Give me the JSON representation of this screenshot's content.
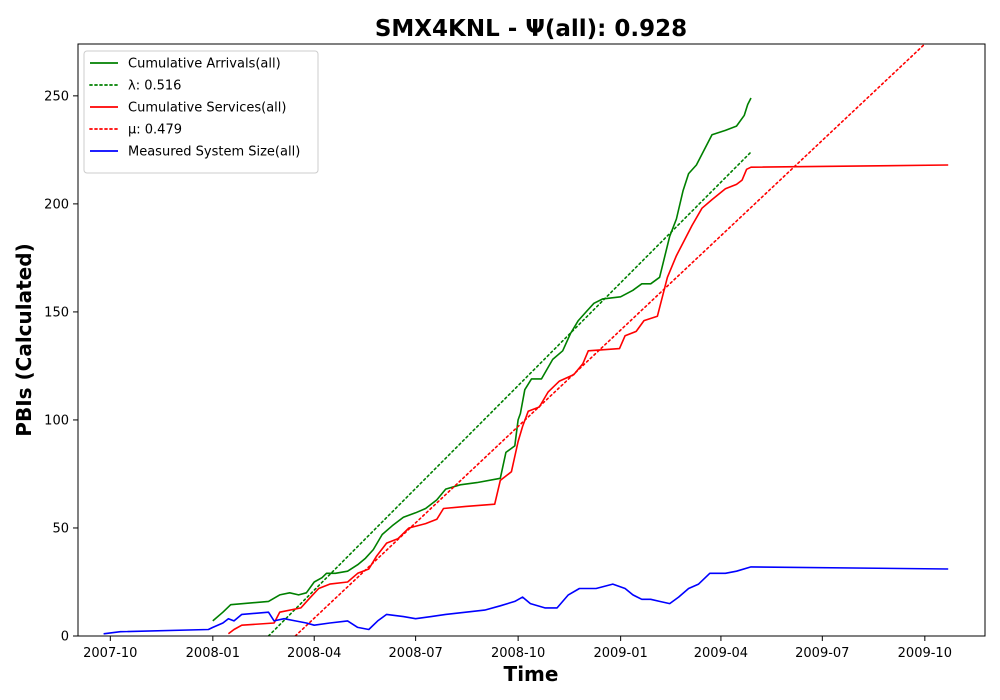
{
  "chart_data": {
    "type": "line",
    "title": "SMX4KNL -  Ψ(all): 0.928",
    "xlabel": "Time",
    "ylabel": "PBIs (Calculated)",
    "x_axis": {
      "type": "date",
      "range": [
        "2007-09-02",
        "2009-11-24"
      ],
      "ticks": [
        "2007-10",
        "2008-01",
        "2008-04",
        "2008-07",
        "2008-10",
        "2009-01",
        "2009-04",
        "2009-07",
        "2009-10"
      ]
    },
    "y_axis": {
      "range": [
        0,
        274
      ],
      "ticks": [
        0,
        50,
        100,
        150,
        200,
        250
      ]
    },
    "grid": false,
    "legend_location": "upper left",
    "series": [
      {
        "name": "Cumulative Arrivals(all)",
        "color": "#008000",
        "style": "solid",
        "points": [
          [
            "2008-01-01",
            7
          ],
          [
            "2008-01-10",
            11
          ],
          [
            "2008-01-17",
            14.5
          ],
          [
            "2008-02-20",
            16
          ],
          [
            "2008-03-01",
            19
          ],
          [
            "2008-03-10",
            20
          ],
          [
            "2008-03-18",
            19
          ],
          [
            "2008-03-25",
            20
          ],
          [
            "2008-04-01",
            25
          ],
          [
            "2008-04-08",
            27
          ],
          [
            "2008-04-12",
            29
          ],
          [
            "2008-04-20",
            29
          ],
          [
            "2008-05-01",
            30
          ],
          [
            "2008-05-10",
            33
          ],
          [
            "2008-05-17",
            36
          ],
          [
            "2008-05-24",
            40
          ],
          [
            "2008-06-01",
            47
          ],
          [
            "2008-06-10",
            51
          ],
          [
            "2008-06-20",
            55
          ],
          [
            "2008-07-01",
            57
          ],
          [
            "2008-07-10",
            59
          ],
          [
            "2008-07-20",
            63
          ],
          [
            "2008-07-28",
            68
          ],
          [
            "2008-08-10",
            70
          ],
          [
            "2008-08-25",
            71
          ],
          [
            "2008-09-15",
            73
          ],
          [
            "2008-09-20",
            85
          ],
          [
            "2008-09-28",
            88
          ],
          [
            "2008-10-01",
            100
          ],
          [
            "2008-10-03",
            103
          ],
          [
            "2008-10-07",
            114
          ],
          [
            "2008-10-13",
            119
          ],
          [
            "2008-10-22",
            119
          ],
          [
            "2008-11-01",
            128
          ],
          [
            "2008-11-10",
            132
          ],
          [
            "2008-11-17",
            140
          ],
          [
            "2008-11-24",
            146
          ],
          [
            "2008-12-01",
            150
          ],
          [
            "2008-12-08",
            154
          ],
          [
            "2008-12-16",
            156
          ],
          [
            "2009-01-01",
            157
          ],
          [
            "2009-01-12",
            160
          ],
          [
            "2009-01-20",
            163
          ],
          [
            "2009-01-28",
            163
          ],
          [
            "2009-02-05",
            166
          ],
          [
            "2009-02-14",
            185
          ],
          [
            "2009-02-20",
            193
          ],
          [
            "2009-02-26",
            206
          ],
          [
            "2009-03-03",
            214
          ],
          [
            "2009-03-10",
            218
          ],
          [
            "2009-03-17",
            225
          ],
          [
            "2009-03-24",
            232
          ],
          [
            "2009-04-05",
            234
          ],
          [
            "2009-04-15",
            236
          ],
          [
            "2009-04-22",
            241
          ],
          [
            "2009-04-25",
            246
          ],
          [
            "2009-04-28",
            249
          ]
        ]
      },
      {
        "name": "λ: 0.516",
        "color": "#008000",
        "style": "dotted",
        "points": [
          [
            "2008-02-20",
            0
          ],
          [
            "2009-04-28",
            224
          ]
        ]
      },
      {
        "name": "Cumulative Services(all)",
        "color": "#ff0000",
        "style": "solid",
        "points": [
          [
            "2008-01-15",
            1
          ],
          [
            "2008-01-20",
            3
          ],
          [
            "2008-01-27",
            5
          ],
          [
            "2008-02-25",
            6
          ],
          [
            "2008-03-01",
            11
          ],
          [
            "2008-03-20",
            13
          ],
          [
            "2008-03-27",
            17
          ],
          [
            "2008-04-05",
            22
          ],
          [
            "2008-04-15",
            24
          ],
          [
            "2008-05-01",
            25
          ],
          [
            "2008-05-10",
            29
          ],
          [
            "2008-05-20",
            31
          ],
          [
            "2008-05-27",
            37
          ],
          [
            "2008-06-05",
            43
          ],
          [
            "2008-06-15",
            45
          ],
          [
            "2008-06-25",
            50
          ],
          [
            "2008-07-10",
            52
          ],
          [
            "2008-07-20",
            54
          ],
          [
            "2008-07-26",
            59
          ],
          [
            "2008-08-15",
            60
          ],
          [
            "2008-09-10",
            61
          ],
          [
            "2008-09-15",
            72
          ],
          [
            "2008-09-25",
            76
          ],
          [
            "2008-10-01",
            90
          ],
          [
            "2008-10-05",
            97
          ],
          [
            "2008-10-10",
            104
          ],
          [
            "2008-10-20",
            106
          ],
          [
            "2008-10-28",
            113
          ],
          [
            "2008-11-07",
            118
          ],
          [
            "2008-11-20",
            121
          ],
          [
            "2008-11-28",
            126
          ],
          [
            "2008-12-03",
            132
          ],
          [
            "2008-12-31",
            133
          ],
          [
            "2009-01-05",
            139
          ],
          [
            "2009-01-15",
            141
          ],
          [
            "2009-01-22",
            146
          ],
          [
            "2009-02-03",
            148
          ],
          [
            "2009-02-12",
            166
          ],
          [
            "2009-02-20",
            176
          ],
          [
            "2009-02-28",
            184
          ],
          [
            "2009-03-06",
            190
          ],
          [
            "2009-03-15",
            198
          ],
          [
            "2009-03-24",
            202
          ],
          [
            "2009-04-05",
            207
          ],
          [
            "2009-04-15",
            209
          ],
          [
            "2009-04-20",
            211
          ],
          [
            "2009-04-24",
            216
          ],
          [
            "2009-04-28",
            217
          ],
          [
            "2009-10-22",
            218
          ]
        ]
      },
      {
        "name": "μ: 0.479",
        "color": "#ff0000",
        "style": "dotted",
        "points": [
          [
            "2008-03-15",
            0
          ],
          [
            "2009-10-01",
            274
          ]
        ]
      },
      {
        "name": "Measured System Size(all)",
        "color": "#0000ff",
        "style": "solid",
        "points": [
          [
            "2007-09-25",
            1
          ],
          [
            "2007-10-10",
            2
          ],
          [
            "2007-12-28",
            3
          ],
          [
            "2008-01-01",
            4
          ],
          [
            "2008-01-10",
            6
          ],
          [
            "2008-01-15",
            8
          ],
          [
            "2008-01-20",
            7
          ],
          [
            "2008-01-27",
            10
          ],
          [
            "2008-02-20",
            11
          ],
          [
            "2008-02-25",
            7
          ],
          [
            "2008-03-05",
            8
          ],
          [
            "2008-03-15",
            7
          ],
          [
            "2008-03-25",
            6
          ],
          [
            "2008-04-01",
            5
          ],
          [
            "2008-04-15",
            6
          ],
          [
            "2008-05-01",
            7
          ],
          [
            "2008-05-10",
            4
          ],
          [
            "2008-05-20",
            3
          ],
          [
            "2008-05-28",
            7
          ],
          [
            "2008-06-05",
            10
          ],
          [
            "2008-06-20",
            9
          ],
          [
            "2008-07-01",
            8
          ],
          [
            "2008-07-15",
            9
          ],
          [
            "2008-07-28",
            10
          ],
          [
            "2008-08-15",
            11
          ],
          [
            "2008-09-01",
            12
          ],
          [
            "2008-09-15",
            14
          ],
          [
            "2008-09-28",
            16
          ],
          [
            "2008-10-05",
            18
          ],
          [
            "2008-10-12",
            15
          ],
          [
            "2008-10-25",
            13
          ],
          [
            "2008-11-05",
            13
          ],
          [
            "2008-11-15",
            19
          ],
          [
            "2008-11-25",
            22
          ],
          [
            "2008-12-10",
            22
          ],
          [
            "2008-12-25",
            24
          ],
          [
            "2009-01-05",
            22
          ],
          [
            "2009-01-12",
            19
          ],
          [
            "2009-01-20",
            17
          ],
          [
            "2009-01-28",
            17
          ],
          [
            "2009-02-05",
            16
          ],
          [
            "2009-02-14",
            15
          ],
          [
            "2009-02-22",
            18
          ],
          [
            "2009-03-03",
            22
          ],
          [
            "2009-03-12",
            24
          ],
          [
            "2009-03-22",
            29
          ],
          [
            "2009-04-05",
            29
          ],
          [
            "2009-04-15",
            30
          ],
          [
            "2009-04-28",
            32
          ],
          [
            "2009-10-22",
            31
          ]
        ]
      }
    ],
    "legend": [
      {
        "label": "Cumulative Arrivals(all)",
        "color": "#008000",
        "style": "solid"
      },
      {
        "label": "λ: 0.516",
        "color": "#008000",
        "style": "dotted"
      },
      {
        "label": "Cumulative Services(all)",
        "color": "#ff0000",
        "style": "solid"
      },
      {
        "label": "μ: 0.479",
        "color": "#ff0000",
        "style": "dotted"
      },
      {
        "label": "Measured System Size(all)",
        "color": "#0000ff",
        "style": "solid"
      }
    ]
  }
}
